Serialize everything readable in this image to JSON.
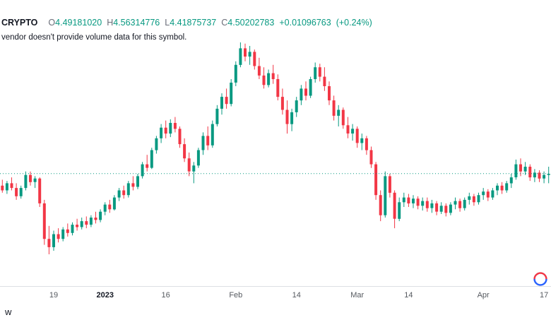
{
  "legend": {
    "symbol": "CRYPTO",
    "ohlc": [
      {
        "label": "O",
        "value": "4.49181020"
      },
      {
        "label": "H",
        "value": "4.56314776"
      },
      {
        "label": "L",
        "value": "4.41875737"
      },
      {
        "label": "C",
        "value": "4.50202783"
      }
    ],
    "change_abs": "+0.01096763",
    "change_pct": "(+0.24%)",
    "note": "vendor doesn't provide volume data for this symbol."
  },
  "bottom_left_partial": "w",
  "colors": {
    "up": "#089981",
    "down": "#f23645",
    "price_line": "#089981",
    "axis_text": "#55595f",
    "axis_text_major": "#131722",
    "text": "#131722",
    "separator": "#dcdfe4",
    "logo_red": "#f23645",
    "logo_blue": "#2962ff",
    "background": "#ffffff"
  },
  "chart_data": {
    "type": "candlestick",
    "title": "",
    "grid": false,
    "legend_position": "top-left",
    "price_line": 4.50202783,
    "x_ticks": [
      {
        "label": "19",
        "index": 11,
        "major": false
      },
      {
        "label": "2023",
        "index": 22,
        "major": true
      },
      {
        "label": "16",
        "index": 35,
        "major": false
      },
      {
        "label": "Feb",
        "index": 50,
        "major": false
      },
      {
        "label": "14",
        "index": 63,
        "major": false
      },
      {
        "label": "Mar",
        "index": 76,
        "major": false
      },
      {
        "label": "14",
        "index": 87,
        "major": false
      },
      {
        "label": "Apr",
        "index": 103,
        "major": false
      },
      {
        "label": "17",
        "index": 116,
        "major": false
      }
    ],
    "candles": [
      [
        4.4,
        4.45,
        4.34,
        4.36
      ],
      [
        4.36,
        4.44,
        4.33,
        4.42
      ],
      [
        4.42,
        4.47,
        4.36,
        4.38
      ],
      [
        4.38,
        4.42,
        4.28,
        4.31
      ],
      [
        4.31,
        4.4,
        4.29,
        4.38
      ],
      [
        4.38,
        4.52,
        4.36,
        4.49
      ],
      [
        4.49,
        4.52,
        4.4,
        4.43
      ],
      [
        4.43,
        4.48,
        4.38,
        4.46
      ],
      [
        4.46,
        4.47,
        4.22,
        4.25
      ],
      [
        4.25,
        4.28,
        3.9,
        3.95
      ],
      [
        3.95,
        4.06,
        3.82,
        3.88
      ],
      [
        3.88,
        4.02,
        3.85,
        3.99
      ],
      [
        3.99,
        4.04,
        3.92,
        3.95
      ],
      [
        3.95,
        4.05,
        3.93,
        4.03
      ],
      [
        4.03,
        4.08,
        3.97,
        4.0
      ],
      [
        4.0,
        4.09,
        3.98,
        4.07
      ],
      [
        4.07,
        4.12,
        4.02,
        4.05
      ],
      [
        4.05,
        4.13,
        4.03,
        4.1
      ],
      [
        4.1,
        4.14,
        4.04,
        4.07
      ],
      [
        4.07,
        4.15,
        4.05,
        4.13
      ],
      [
        4.13,
        4.18,
        4.08,
        4.11
      ],
      [
        4.11,
        4.2,
        4.09,
        4.18
      ],
      [
        4.18,
        4.26,
        4.15,
        4.24
      ],
      [
        4.24,
        4.28,
        4.17,
        4.2
      ],
      [
        4.2,
        4.32,
        4.19,
        4.3
      ],
      [
        4.3,
        4.38,
        4.27,
        4.36
      ],
      [
        4.36,
        4.4,
        4.29,
        4.32
      ],
      [
        4.32,
        4.44,
        4.3,
        4.42
      ],
      [
        4.42,
        4.48,
        4.36,
        4.39
      ],
      [
        4.39,
        4.5,
        4.37,
        4.48
      ],
      [
        4.48,
        4.6,
        4.46,
        4.58
      ],
      [
        4.58,
        4.66,
        4.52,
        4.55
      ],
      [
        4.55,
        4.72,
        4.54,
        4.7
      ],
      [
        4.7,
        4.82,
        4.67,
        4.8
      ],
      [
        4.8,
        4.92,
        4.76,
        4.89
      ],
      [
        4.89,
        4.95,
        4.8,
        4.84
      ],
      [
        4.84,
        4.96,
        4.81,
        4.93
      ],
      [
        4.93,
        4.98,
        4.85,
        4.88
      ],
      [
        4.88,
        4.9,
        4.72,
        4.75
      ],
      [
        4.75,
        4.8,
        4.6,
        4.63
      ],
      [
        4.63,
        4.68,
        4.48,
        4.52
      ],
      [
        4.52,
        4.6,
        4.42,
        4.57
      ],
      [
        4.57,
        4.72,
        4.55,
        4.7
      ],
      [
        4.7,
        4.85,
        4.66,
        4.82
      ],
      [
        4.82,
        4.9,
        4.7,
        4.74
      ],
      [
        4.74,
        4.95,
        4.72,
        4.92
      ],
      [
        4.92,
        5.08,
        4.9,
        5.05
      ],
      [
        5.05,
        5.18,
        5.0,
        5.15
      ],
      [
        5.15,
        5.22,
        5.05,
        5.09
      ],
      [
        5.09,
        5.3,
        5.07,
        5.27
      ],
      [
        5.27,
        5.45,
        5.24,
        5.42
      ],
      [
        5.42,
        5.61,
        5.4,
        5.56
      ],
      [
        5.56,
        5.6,
        5.45,
        5.49
      ],
      [
        5.49,
        5.58,
        5.42,
        5.53
      ],
      [
        5.53,
        5.55,
        5.38,
        5.41
      ],
      [
        5.41,
        5.48,
        5.3,
        5.33
      ],
      [
        5.33,
        5.4,
        5.22,
        5.25
      ],
      [
        5.25,
        5.38,
        5.23,
        5.35
      ],
      [
        5.35,
        5.42,
        5.26,
        5.3
      ],
      [
        5.3,
        5.34,
        5.12,
        5.15
      ],
      [
        5.15,
        5.22,
        5.0,
        5.04
      ],
      [
        5.04,
        5.12,
        4.84,
        4.92
      ],
      [
        4.92,
        5.05,
        4.86,
        5.02
      ],
      [
        5.02,
        5.15,
        4.98,
        5.12
      ],
      [
        5.12,
        5.25,
        5.08,
        5.22
      ],
      [
        5.22,
        5.28,
        5.12,
        5.16
      ],
      [
        5.16,
        5.32,
        5.14,
        5.3
      ],
      [
        5.3,
        5.44,
        5.27,
        5.4
      ],
      [
        5.4,
        5.43,
        5.28,
        5.32
      ],
      [
        5.32,
        5.4,
        5.2,
        5.24
      ],
      [
        5.24,
        5.28,
        5.08,
        5.12
      ],
      [
        5.12,
        5.16,
        4.95,
        4.99
      ],
      [
        4.99,
        5.08,
        4.9,
        5.04
      ],
      [
        5.04,
        5.06,
        4.88,
        4.91
      ],
      [
        4.91,
        4.98,
        4.8,
        4.84
      ],
      [
        4.84,
        4.92,
        4.78,
        4.88
      ],
      [
        4.88,
        4.9,
        4.72,
        4.76
      ],
      [
        4.76,
        4.84,
        4.7,
        4.8
      ],
      [
        4.8,
        4.82,
        4.66,
        4.7
      ],
      [
        4.7,
        4.73,
        4.55,
        4.58
      ],
      [
        4.58,
        4.6,
        4.28,
        4.32
      ],
      [
        4.32,
        4.36,
        4.1,
        4.15
      ],
      [
        4.15,
        4.52,
        4.13,
        4.48
      ],
      [
        4.48,
        4.5,
        4.3,
        4.34
      ],
      [
        4.34,
        4.36,
        4.04,
        4.12
      ],
      [
        4.12,
        4.3,
        4.1,
        4.26
      ],
      [
        4.26,
        4.34,
        4.22,
        4.3
      ],
      [
        4.3,
        4.33,
        4.22,
        4.25
      ],
      [
        4.25,
        4.32,
        4.21,
        4.29
      ],
      [
        4.29,
        4.31,
        4.2,
        4.23
      ],
      [
        4.23,
        4.3,
        4.19,
        4.27
      ],
      [
        4.27,
        4.3,
        4.18,
        4.21
      ],
      [
        4.21,
        4.28,
        4.17,
        4.25
      ],
      [
        4.25,
        4.27,
        4.15,
        4.18
      ],
      [
        4.18,
        4.26,
        4.16,
        4.23
      ],
      [
        4.23,
        4.25,
        4.14,
        4.17
      ],
      [
        4.17,
        4.26,
        4.15,
        4.24
      ],
      [
        4.24,
        4.3,
        4.2,
        4.27
      ],
      [
        4.27,
        4.29,
        4.18,
        4.21
      ],
      [
        4.21,
        4.3,
        4.19,
        4.28
      ],
      [
        4.28,
        4.34,
        4.24,
        4.31
      ],
      [
        4.31,
        4.33,
        4.23,
        4.26
      ],
      [
        4.26,
        4.34,
        4.24,
        4.32
      ],
      [
        4.32,
        4.38,
        4.28,
        4.35
      ],
      [
        4.35,
        4.37,
        4.27,
        4.3
      ],
      [
        4.3,
        4.38,
        4.28,
        4.36
      ],
      [
        4.36,
        4.42,
        4.32,
        4.4
      ],
      [
        4.4,
        4.43,
        4.33,
        4.36
      ],
      [
        4.36,
        4.44,
        4.34,
        4.42
      ],
      [
        4.42,
        4.5,
        4.38,
        4.47
      ],
      [
        4.47,
        4.62,
        4.45,
        4.58
      ],
      [
        4.58,
        4.63,
        4.48,
        4.52
      ],
      [
        4.52,
        4.6,
        4.49,
        4.56
      ],
      [
        4.56,
        4.58,
        4.44,
        4.47
      ],
      [
        4.47,
        4.54,
        4.43,
        4.51
      ],
      [
        4.51,
        4.53,
        4.43,
        4.46
      ],
      [
        4.46,
        4.52,
        4.42,
        4.49
      ],
      [
        4.49,
        4.56,
        4.42,
        4.5
      ]
    ]
  }
}
